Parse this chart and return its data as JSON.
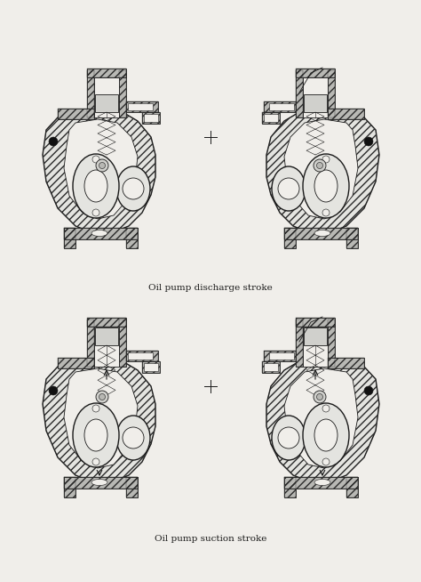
{
  "background_color": "#f0eeea",
  "title1": "Oil pump discharge stroke",
  "title2": "Oil pump suction stroke",
  "title_fontsize": 7.5,
  "line_color": "#1a1a1a",
  "fig_width": 4.74,
  "fig_height": 6.54,
  "lw_outer": 1.0,
  "lw_inner": 0.6,
  "lw_thin": 0.4,
  "hatch_density": "////"
}
